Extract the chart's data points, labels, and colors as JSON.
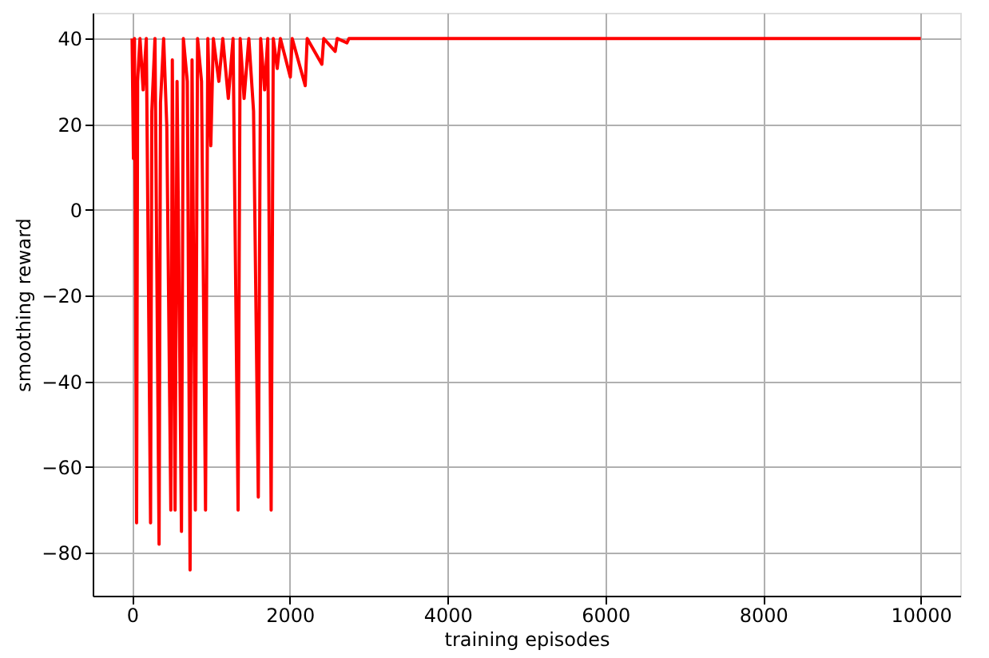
{
  "chart_data": {
    "type": "line",
    "xlabel": "training episodes",
    "ylabel": "smoothing reward",
    "x": [
      0,
      17,
      30,
      57,
      70,
      100,
      140,
      180,
      234,
      250,
      290,
      342,
      360,
      400,
      440,
      491,
      510,
      545,
      570,
      626,
      650,
      700,
      735,
      760,
      802,
      830,
      880,
      931,
      960,
      998,
      1030,
      1100,
      1150,
      1220,
      1280,
      1344,
      1370,
      1420,
      1480,
      1540,
      1600,
      1630,
      1680,
      1720,
      1763,
      1790,
      1840,
      1880,
      1950,
      2006,
      2030,
      2195,
      2220,
      2406,
      2430,
      2575,
      2600,
      2724,
      2750,
      10000
    ],
    "series": [
      {
        "color": "#ff0000",
        "values": [
          40,
          12,
          40,
          -73,
          30,
          40,
          28,
          40,
          -73,
          23,
          40,
          -78,
          25,
          40,
          19.5,
          -70,
          35,
          -70,
          30,
          -75,
          40,
          30,
          -84,
          35,
          -70,
          40,
          30,
          -70,
          40,
          15,
          40,
          30,
          40,
          26,
          40,
          -70,
          40,
          26,
          40,
          23,
          -67,
          40,
          28,
          40,
          -70,
          40,
          33,
          40,
          35,
          31,
          40,
          29,
          40,
          34,
          40,
          37,
          40,
          39,
          40,
          40
        ]
      }
    ],
    "xlim": [
      -500,
      10500
    ],
    "ylim": [
      -90,
      46
    ],
    "xticks": [
      0,
      2000,
      4000,
      6000,
      8000,
      10000
    ],
    "yticks": [
      -80,
      -60,
      -40,
      -20,
      0,
      20,
      40
    ],
    "grid": true,
    "line_style": "solid",
    "marker": "none"
  }
}
